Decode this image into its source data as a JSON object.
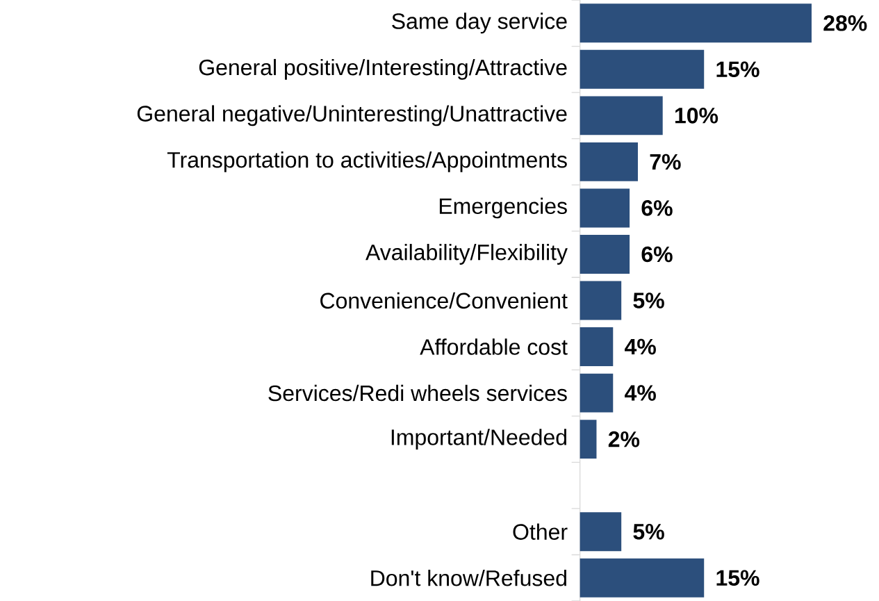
{
  "chart_data": {
    "type": "bar",
    "orientation": "horizontal",
    "categories": [
      "Same day service",
      "General positive/Interesting/Attractive",
      "General negative/Uninteresting/Unattractive",
      "Transportation to activities/Appointments",
      "Emergencies",
      "Availability/Flexibility",
      "Convenience/Convenient",
      "Affordable cost",
      "Services/Redi wheels services",
      "Important/Needed",
      null,
      "Other",
      "Don't know/Refused"
    ],
    "values": [
      28,
      15,
      10,
      7,
      6,
      6,
      5,
      4,
      4,
      2,
      null,
      5,
      15
    ],
    "value_labels": [
      "28%",
      "15%",
      "10%",
      "7%",
      "6%",
      "6%",
      "5%",
      "4%",
      "4%",
      "2%",
      null,
      "5%",
      "15%"
    ],
    "color": "#2c4f7c",
    "tick_labels": "y"
  }
}
